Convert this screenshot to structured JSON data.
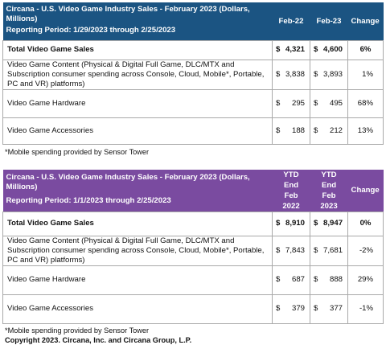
{
  "table1": {
    "title": "Circana - U.S. Video Game Industry Sales - February 2023 (Dollars, Millions)",
    "period": "Reporting Period: 1/29/2023 through 2/25/2023",
    "col1": "Feb-22",
    "col2": "Feb-23",
    "col3": "Change",
    "rows": [
      {
        "label": "Total Video Game Sales",
        "cur1": "$",
        "v1": "4,321",
        "cur2": "$",
        "v2": "4,600",
        "change": "6%"
      },
      {
        "label": "Video Game Content (Physical & Digital Full Game, DLC/MTX and Subscription consumer spending across Console, Cloud, Mobile*, Portable, PC and VR) platforms)",
        "cur1": "$",
        "v1": "3,838",
        "cur2": "$",
        "v2": "3,893",
        "change": "1%"
      },
      {
        "label": "Video Game Hardware",
        "cur1": "$",
        "v1": "295",
        "cur2": "$",
        "v2": "495",
        "change": "68%"
      },
      {
        "label": "Video Game Accessories",
        "cur1": "$",
        "v1": "188",
        "cur2": "$",
        "v2": "212",
        "change": "13%"
      }
    ],
    "footnote": "*Mobile spending provided by Sensor Tower"
  },
  "table2": {
    "title": "Circana - U.S. Video Game Industry Sales - February 2023 (Dollars, Millions)",
    "period": "Reporting Period: 1/1/2023 through 2/25/2023",
    "col1_line1": "YTD End",
    "col1_line2": "Feb 2022",
    "col2_line1": "YTD End",
    "col2_line2": "Feb 2023",
    "col3": "Change",
    "rows": [
      {
        "label": "Total Video Game Sales",
        "cur1": "$",
        "v1": "8,910",
        "cur2": "$",
        "v2": "8,947",
        "change": "0%"
      },
      {
        "label": "Video Game Content (Physical & Digital Full Game, DLC/MTX and Subscription consumer spending across Console, Cloud, Mobile*, Portable, PC and VR) platforms)",
        "cur1": "$",
        "v1": "7,843",
        "cur2": "$",
        "v2": "7,681",
        "change": "-2%"
      },
      {
        "label": "Video Game Hardware",
        "cur1": "$",
        "v1": "687",
        "cur2": "$",
        "v2": "888",
        "change": "29%"
      },
      {
        "label": "Video Game Accessories",
        "cur1": "$",
        "v1": "379",
        "cur2": "$",
        "v2": "377",
        "change": "-1%"
      }
    ],
    "footnote": "*Mobile spending provided by Sensor Tower",
    "copyright": "Copyright 2023. Circana, Inc. and Circana Group, L.P."
  },
  "colors": {
    "header_blue": "#1b5482",
    "header_purple": "#7a4ba0"
  }
}
